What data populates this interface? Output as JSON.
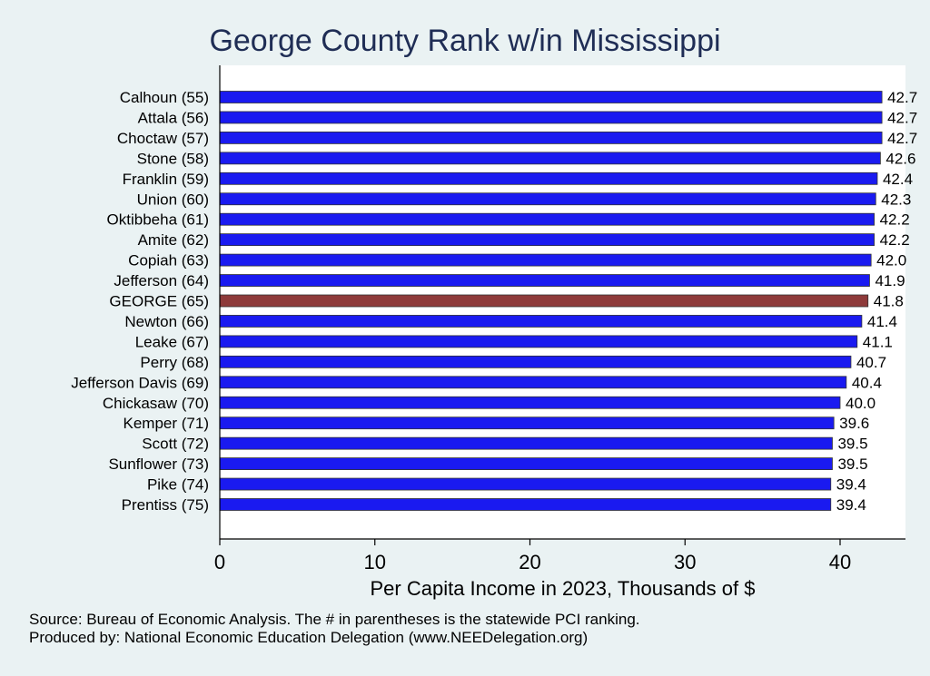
{
  "colors": {
    "background": "#eaf2f3",
    "plot_background": "#ffffff",
    "bar": "#1a1af0",
    "bar_highlight": "#8e3a3a",
    "title": "#1f2d55"
  },
  "chart_data": {
    "type": "bar",
    "orientation": "horizontal",
    "title": "George County Rank w/in Mississippi",
    "xlabel": "Per Capita Income in 2023, Thousands of $",
    "ylabel": "",
    "xlim": [
      0,
      44
    ],
    "xticks": [
      0,
      10,
      20,
      30,
      40
    ],
    "grid": false,
    "highlight_category": "GEORGE (65)",
    "categories": [
      "Calhoun (55)",
      "Attala (56)",
      "Choctaw (57)",
      "Stone (58)",
      "Franklin (59)",
      "Union (60)",
      "Oktibbeha (61)",
      "Amite (62)",
      "Copiah (63)",
      "Jefferson (64)",
      "GEORGE (65)",
      "Newton (66)",
      "Leake (67)",
      "Perry (68)",
      "Jefferson Davis (69)",
      "Chickasaw (70)",
      "Kemper (71)",
      "Scott (72)",
      "Sunflower (73)",
      "Pike (74)",
      "Prentiss (75)"
    ],
    "values": [
      42.7,
      42.7,
      42.7,
      42.6,
      42.4,
      42.3,
      42.2,
      42.2,
      42.0,
      41.9,
      41.8,
      41.4,
      41.1,
      40.7,
      40.4,
      40.0,
      39.6,
      39.5,
      39.5,
      39.4,
      39.4
    ],
    "value_labels": [
      "42.7",
      "42.7",
      "42.7",
      "42.6",
      "42.4",
      "42.3",
      "42.2",
      "42.2",
      "42.0",
      "41.9",
      "41.8",
      "41.4",
      "41.1",
      "40.7",
      "40.4",
      "40.0",
      "39.6",
      "39.5",
      "39.5",
      "39.4",
      "39.4"
    ]
  },
  "notes": {
    "source": "Source: Bureau of Economic Analysis. The # in parentheses is the statewide PCI ranking.",
    "produced_by": "Produced by: National Economic Education Delegation (www.NEEDelegation.org)"
  }
}
